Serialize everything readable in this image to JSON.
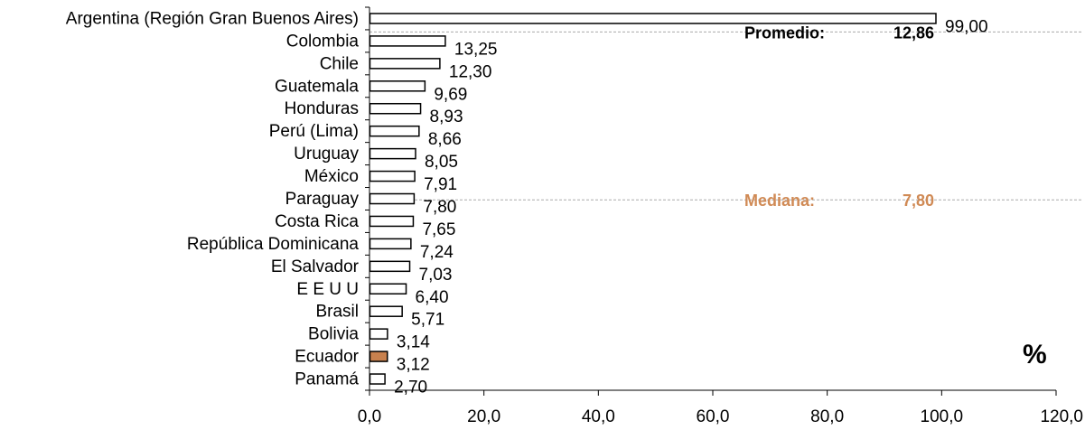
{
  "chart_data": {
    "type": "bar",
    "orientation": "horizontal",
    "categories": [
      "Argentina (Región Gran Buenos Aires)",
      "Colombia",
      "Chile",
      "Guatemala",
      "Honduras",
      "Perú (Lima)",
      "Uruguay",
      "México",
      "Paraguay",
      "Costa Rica",
      "República Dominicana",
      "El Salvador",
      "E E U U",
      "Brasil",
      "Bolivia",
      "Ecuador",
      "Panamá"
    ],
    "values": [
      99.0,
      13.25,
      12.3,
      9.69,
      8.93,
      8.66,
      8.05,
      7.91,
      7.8,
      7.65,
      7.24,
      7.03,
      6.4,
      5.71,
      3.14,
      3.12,
      2.7
    ],
    "value_labels": [
      "99,00",
      "13,25",
      "12,30",
      "9,69",
      "8,93",
      "8,66",
      "8,05",
      "7,91",
      "7,80",
      "7,65",
      "7,24",
      "7,03",
      "6,40",
      "5,71",
      "3,14",
      "3,12",
      "2,70"
    ],
    "highlight_category": "Ecuador",
    "xlim": [
      0,
      120
    ],
    "xticks": [
      0,
      20,
      40,
      60,
      80,
      100,
      120
    ],
    "xtick_labels": [
      "0,0",
      "20,0",
      "40,0",
      "60,0",
      "80,0",
      "100,0",
      "120,0"
    ],
    "unit_label": "%",
    "reference_lines": [
      {
        "label": "Promedio:",
        "value": 12.86,
        "value_label": "12,86",
        "color": "#000000",
        "line_color": "#aaaaaa"
      },
      {
        "label": "Mediana:",
        "value": 7.8,
        "value_label": "7,80",
        "color": "#d08a55",
        "line_color": "#aaaaaa"
      }
    ],
    "colors": {
      "bar": "#ffffff",
      "bar_stroke": "#000000",
      "highlight": "#c8814e"
    },
    "grid": false
  }
}
